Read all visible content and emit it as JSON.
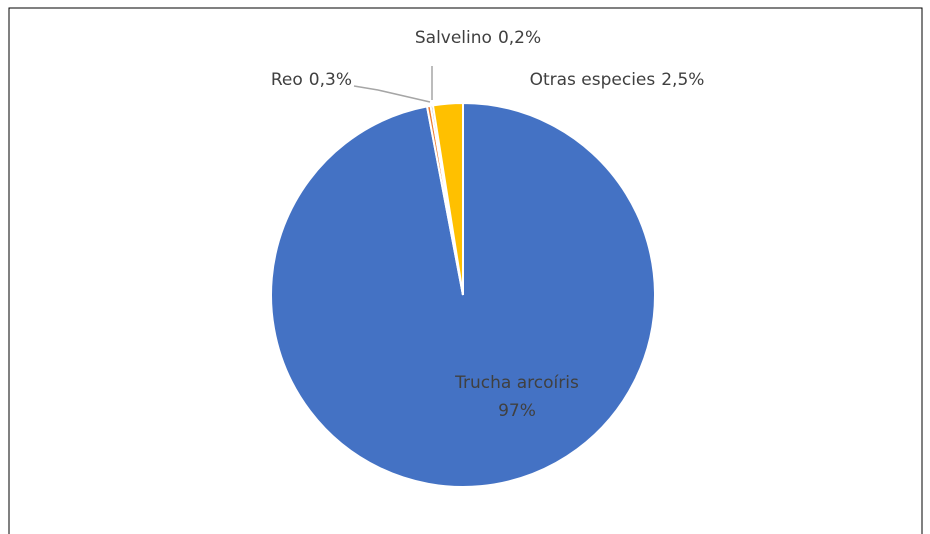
{
  "chart_data": {
    "type": "pie",
    "categories": [
      "Trucha arcoíris",
      "Reo",
      "Salvelino",
      "Otras especies"
    ],
    "values": [
      97,
      0.3,
      0.2,
      2.5
    ],
    "value_labels": [
      "97%",
      "0,3%",
      "0,2%",
      "2,5%"
    ],
    "colors": [
      "#4472c4",
      "#ed7d31",
      "#a5a5a5",
      "#ffc000"
    ]
  }
}
